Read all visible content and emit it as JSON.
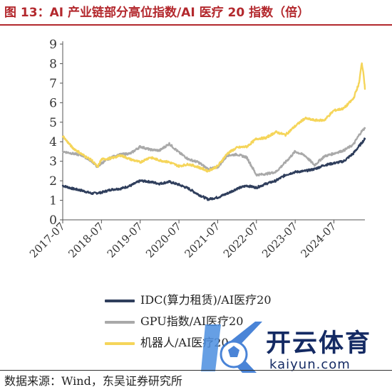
{
  "title": "图 13：AI 产业链部分高位指数/AI 医疗 20 指数（倍）",
  "source": "数据来源：Wind，东吴证券研究所",
  "watermark": {
    "text": "开云体育",
    "domain": "kaiyun.com"
  },
  "chart_data": {
    "type": "line",
    "title": "",
    "xlabel": "",
    "ylabel": "",
    "ylim": [
      0,
      9
    ],
    "yticks": [
      "0",
      "1",
      "2",
      "3",
      "4",
      "5",
      "6",
      "7",
      "8",
      "9"
    ],
    "xticks": [
      "2017-07",
      "2018-07",
      "2019-07",
      "2020-07",
      "2021-07",
      "2022-07",
      "2023-07",
      "2024-07"
    ],
    "x_range": [
      2017.5,
      2025.3
    ],
    "grid": false,
    "legend_position": "bottom",
    "series": [
      {
        "name": "IDC(算力租赁)/AI医疗20",
        "color": "#2f3e5c",
        "points": [
          [
            2017.5,
            1.75
          ],
          [
            2017.75,
            1.6
          ],
          [
            2018.0,
            1.5
          ],
          [
            2018.25,
            1.35
          ],
          [
            2018.5,
            1.4
          ],
          [
            2018.75,
            1.55
          ],
          [
            2019.0,
            1.6
          ],
          [
            2019.25,
            1.75
          ],
          [
            2019.5,
            2.0
          ],
          [
            2019.75,
            1.95
          ],
          [
            2020.0,
            1.85
          ],
          [
            2020.25,
            1.95
          ],
          [
            2020.5,
            1.8
          ],
          [
            2020.75,
            1.6
          ],
          [
            2021.0,
            1.3
          ],
          [
            2021.25,
            1.05
          ],
          [
            2021.5,
            1.15
          ],
          [
            2021.75,
            1.35
          ],
          [
            2022.0,
            1.6
          ],
          [
            2022.25,
            1.75
          ],
          [
            2022.5,
            1.65
          ],
          [
            2022.75,
            1.85
          ],
          [
            2023.0,
            2.0
          ],
          [
            2023.25,
            2.3
          ],
          [
            2023.5,
            2.45
          ],
          [
            2023.75,
            2.5
          ],
          [
            2024.0,
            2.6
          ],
          [
            2024.25,
            2.8
          ],
          [
            2024.5,
            2.9
          ],
          [
            2024.75,
            3.0
          ],
          [
            2025.0,
            3.4
          ],
          [
            2025.2,
            3.9
          ],
          [
            2025.3,
            4.15
          ]
        ]
      },
      {
        "name": "GPU指数/AI医疗20",
        "color": "#a9a9a9",
        "points": [
          [
            2017.5,
            3.5
          ],
          [
            2017.75,
            3.4
          ],
          [
            2018.0,
            3.3
          ],
          [
            2018.25,
            3.0
          ],
          [
            2018.4,
            2.7
          ],
          [
            2018.5,
            2.9
          ],
          [
            2018.75,
            3.2
          ],
          [
            2019.0,
            3.35
          ],
          [
            2019.25,
            3.4
          ],
          [
            2019.5,
            3.75
          ],
          [
            2019.75,
            3.6
          ],
          [
            2020.0,
            3.55
          ],
          [
            2020.25,
            3.9
          ],
          [
            2020.5,
            3.45
          ],
          [
            2020.75,
            3.1
          ],
          [
            2021.0,
            2.95
          ],
          [
            2021.25,
            2.6
          ],
          [
            2021.5,
            2.7
          ],
          [
            2021.75,
            3.3
          ],
          [
            2022.0,
            3.35
          ],
          [
            2022.25,
            3.2
          ],
          [
            2022.5,
            2.3
          ],
          [
            2022.75,
            2.35
          ],
          [
            2023.0,
            2.45
          ],
          [
            2023.25,
            2.95
          ],
          [
            2023.5,
            3.5
          ],
          [
            2023.75,
            3.3
          ],
          [
            2024.0,
            2.8
          ],
          [
            2024.25,
            3.25
          ],
          [
            2024.5,
            3.4
          ],
          [
            2024.75,
            3.55
          ],
          [
            2025.0,
            3.85
          ],
          [
            2025.2,
            4.5
          ],
          [
            2025.3,
            4.7
          ]
        ]
      },
      {
        "name": "机器人/AI医疗20",
        "color": "#f5d55a",
        "points": [
          [
            2017.5,
            4.3
          ],
          [
            2017.6,
            4.05
          ],
          [
            2017.75,
            3.7
          ],
          [
            2018.0,
            3.35
          ],
          [
            2018.25,
            3.05
          ],
          [
            2018.4,
            2.7
          ],
          [
            2018.5,
            3.1
          ],
          [
            2018.75,
            3.15
          ],
          [
            2019.0,
            3.3
          ],
          [
            2019.25,
            3.1
          ],
          [
            2019.5,
            2.95
          ],
          [
            2019.75,
            3.2
          ],
          [
            2020.0,
            3.05
          ],
          [
            2020.25,
            2.95
          ],
          [
            2020.5,
            2.75
          ],
          [
            2020.75,
            2.85
          ],
          [
            2021.0,
            2.7
          ],
          [
            2021.25,
            2.5
          ],
          [
            2021.5,
            2.75
          ],
          [
            2021.75,
            3.4
          ],
          [
            2022.0,
            3.7
          ],
          [
            2022.25,
            3.75
          ],
          [
            2022.5,
            4.15
          ],
          [
            2022.75,
            4.2
          ],
          [
            2023.0,
            4.5
          ],
          [
            2023.25,
            4.35
          ],
          [
            2023.5,
            4.8
          ],
          [
            2023.75,
            5.2
          ],
          [
            2024.0,
            5.1
          ],
          [
            2024.25,
            5.1
          ],
          [
            2024.5,
            5.6
          ],
          [
            2024.75,
            5.7
          ],
          [
            2025.0,
            6.2
          ],
          [
            2025.15,
            7.0
          ],
          [
            2025.22,
            8.05
          ],
          [
            2025.27,
            7.4
          ],
          [
            2025.3,
            6.7
          ]
        ]
      }
    ]
  }
}
